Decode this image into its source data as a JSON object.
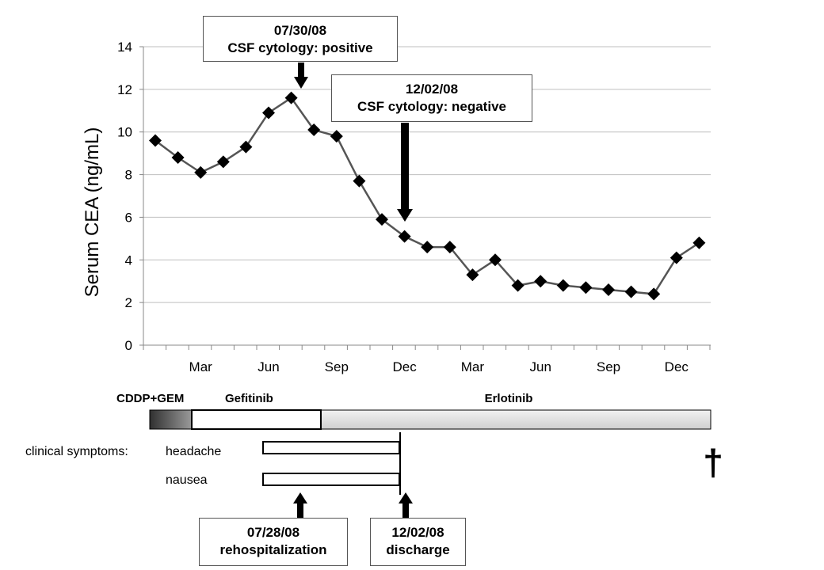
{
  "chart_data": {
    "type": "line",
    "ylabel": "Serum CEA (ng/mL)",
    "ylim": [
      0,
      14
    ],
    "yticks": [
      0,
      2,
      4,
      6,
      8,
      10,
      12,
      14
    ],
    "x_tick_labels": [
      "Mar",
      "Jun",
      "Sep",
      "Dec",
      "Mar",
      "Jun",
      "Sep",
      "Dec"
    ],
    "grid": "horizontal",
    "marker": "diamond",
    "series": [
      {
        "values": [
          9.6,
          8.8,
          8.1,
          8.6,
          9.3,
          10.9,
          11.6,
          10.1,
          9.8,
          7.7,
          5.9,
          5.1,
          4.6,
          4.6,
          3.3,
          4.0,
          2.8,
          3.0,
          2.8,
          2.7,
          2.6,
          2.5,
          2.4,
          4.1,
          4.8
        ]
      }
    ],
    "annotations": [
      {
        "date": "07/30/08",
        "text": "CSF cytology: positive"
      },
      {
        "date": "12/02/08",
        "text": "CSF cytology: negative"
      }
    ]
  },
  "treatments": {
    "cddp_gem": "CDDP+GEM",
    "gefitinib": "Gefitinib",
    "erlotinib": "Erlotinib"
  },
  "symptoms": {
    "prefix": "clinical symptoms:",
    "headache": "headache",
    "nausea": "nausea"
  },
  "events": {
    "rehospitalization": {
      "date": "07/28/08",
      "label": "rehospitalization"
    },
    "discharge": {
      "date": "12/02/08",
      "label": "discharge"
    }
  },
  "death_symbol": "†",
  "colors": {
    "line": "#555555",
    "marker": "#000000",
    "grid": "#bfbfbf",
    "erlotinib_bar": "#d9d9d9"
  }
}
